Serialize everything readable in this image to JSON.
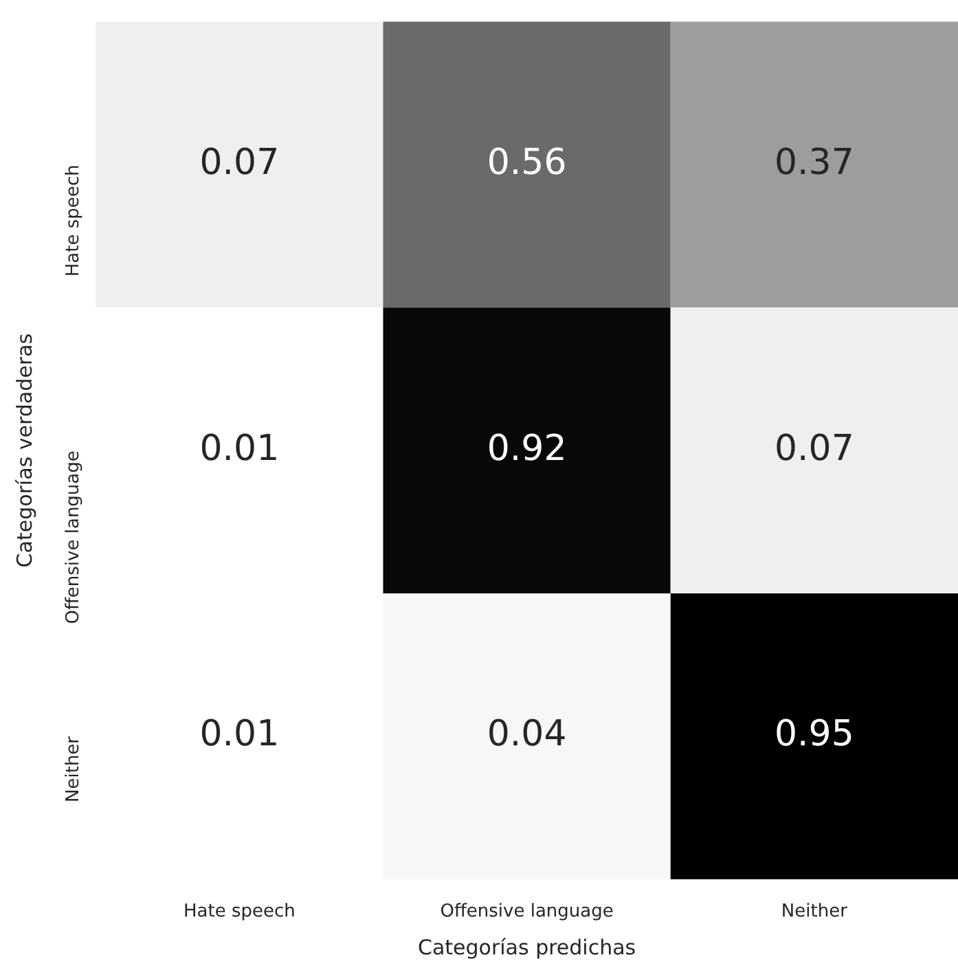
{
  "chart_data": {
    "type": "heatmap",
    "xlabel": "Categorías predichas",
    "ylabel": "Categorías verdaderas",
    "categories": [
      "Hate speech",
      "Offensive language",
      "Neither"
    ],
    "y_categories": [
      "Hate speech",
      "Offensive language",
      "Neither"
    ],
    "cells": [
      [
        0.07,
        0.56,
        0.37
      ],
      [
        0.01,
        0.92,
        0.07
      ],
      [
        0.01,
        0.04,
        0.95
      ]
    ],
    "data_labels": true
  }
}
